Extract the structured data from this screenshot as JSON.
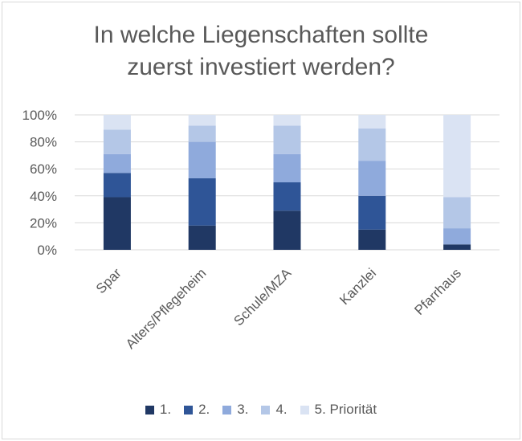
{
  "chart_data": {
    "type": "bar",
    "stacked": "percent",
    "title": [
      "In welche Liegenschaften sollte",
      "zuerst investiert werden?"
    ],
    "categories": [
      "Spar",
      "Alters/Pflegeheim",
      "Schule/MZA",
      "Kanzlei",
      "Pfarrhaus"
    ],
    "series": [
      {
        "name": "1.",
        "color": "#203864",
        "values": [
          39,
          18,
          29,
          15,
          4
        ]
      },
      {
        "name": "2.",
        "color": "#2f5597",
        "values": [
          18,
          35,
          21,
          25,
          0
        ]
      },
      {
        "name": "3.",
        "color": "#8faadc",
        "values": [
          14,
          27,
          21,
          26,
          12
        ]
      },
      {
        "name": "4.",
        "color": "#b4c7e7",
        "values": [
          18,
          12,
          21,
          24,
          23
        ]
      },
      {
        "name": "5. Priorität",
        "color": "#dae3f3",
        "values": [
          11,
          8,
          8,
          10,
          61
        ]
      }
    ],
    "yticks": [
      "0%",
      "20%",
      "40%",
      "60%",
      "80%",
      "100%"
    ],
    "ylim": [
      0,
      100
    ],
    "grid": true,
    "legend": "bottom"
  }
}
